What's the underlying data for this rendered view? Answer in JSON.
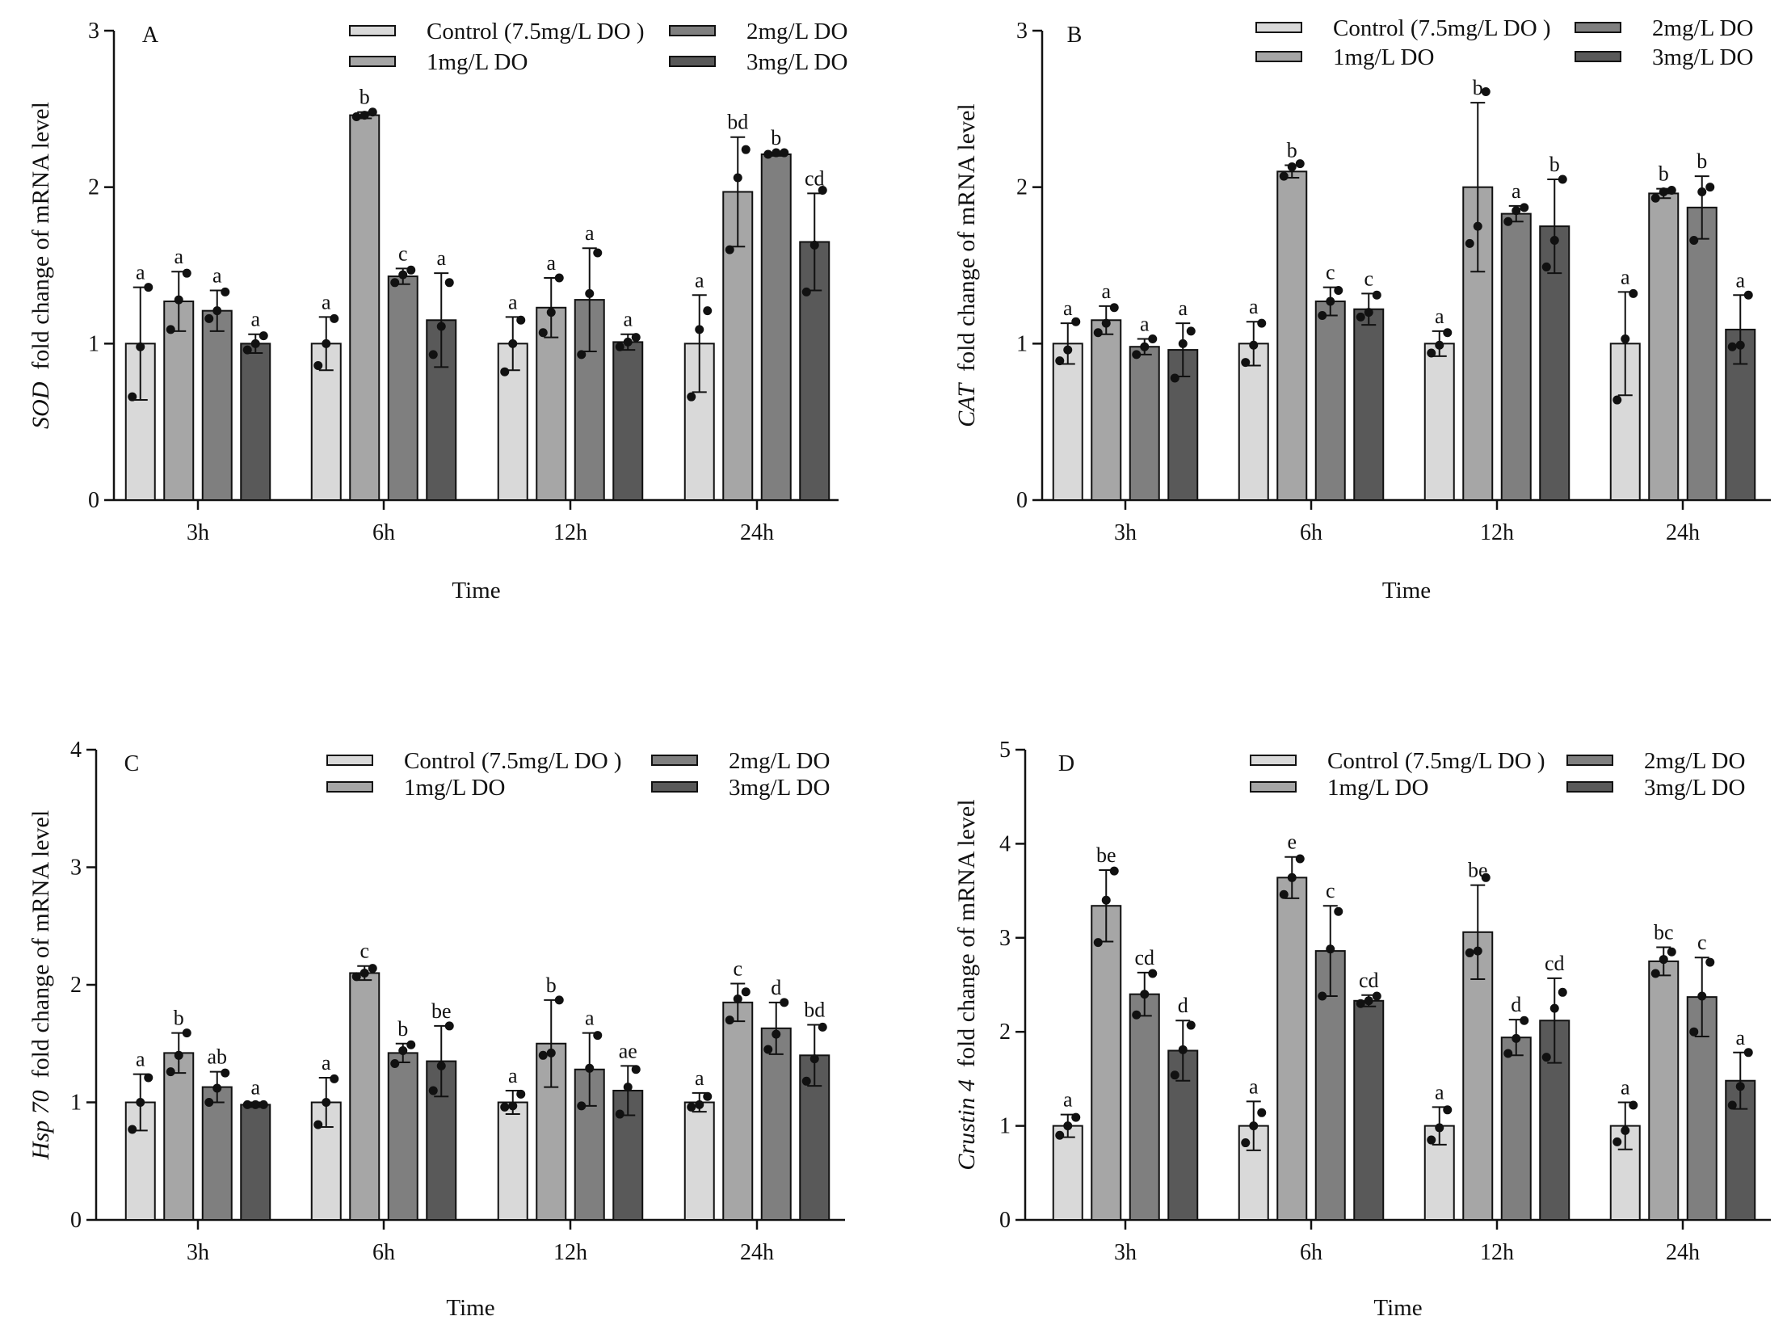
{
  "chart_data": [
    {
      "type": "bar",
      "panel": "A",
      "gene": "SOD",
      "ylabel_suffix": "fold change of mRNA level",
      "xlabel": "Time",
      "categories": [
        "3h",
        "6h",
        "12h",
        "24h"
      ],
      "ylim": [
        0,
        3
      ],
      "yticks": [
        0,
        1,
        2,
        3
      ],
      "series": [
        {
          "name": "Control (7.5mg/L DO )",
          "color": "#d9d9d9",
          "values": [
            1.0,
            1.0,
            1.0,
            1.0
          ],
          "errors": [
            0.36,
            0.17,
            0.17,
            0.31
          ],
          "letters": [
            "a",
            "a",
            "a",
            "a"
          ],
          "points": [
            [
              0.66,
              0.98,
              1.36
            ],
            [
              0.86,
              1.0,
              1.16
            ],
            [
              0.82,
              1.0,
              1.15
            ],
            [
              0.66,
              1.09,
              1.21
            ]
          ]
        },
        {
          "name": "1mg/L DO",
          "color": "#a6a6a6",
          "values": [
            1.27,
            2.46,
            1.23,
            1.97
          ],
          "errors": [
            0.19,
            0.02,
            0.19,
            0.35
          ],
          "letters": [
            "a",
            "b",
            "a",
            "bd"
          ],
          "points": [
            [
              1.09,
              1.28,
              1.45
            ],
            [
              2.45,
              2.46,
              2.48
            ],
            [
              1.07,
              1.2,
              1.42
            ],
            [
              1.6,
              2.06,
              2.24
            ]
          ]
        },
        {
          "name": "2mg/L DO",
          "color": "#7f7f7f",
          "values": [
            1.21,
            1.43,
            1.28,
            2.21
          ],
          "errors": [
            0.13,
            0.05,
            0.33,
            0.01
          ],
          "letters": [
            "a",
            "c",
            "a",
            "b"
          ],
          "points": [
            [
              1.16,
              1.21,
              1.33
            ],
            [
              1.39,
              1.44,
              1.47
            ],
            [
              0.93,
              1.32,
              1.58
            ],
            [
              2.21,
              2.22,
              2.22
            ]
          ]
        },
        {
          "name": "3mg/L DO",
          "color": "#595959",
          "values": [
            1.0,
            1.15,
            1.01,
            1.65
          ],
          "errors": [
            0.06,
            0.3,
            0.05,
            0.31
          ],
          "letters": [
            "a",
            "a",
            "a",
            "cd"
          ],
          "points": [
            [
              0.96,
              1.0,
              1.05
            ],
            [
              0.93,
              1.11,
              1.39
            ],
            [
              0.98,
              1.01,
              1.04
            ],
            [
              1.33,
              1.63,
              1.98
            ]
          ]
        }
      ]
    },
    {
      "type": "bar",
      "panel": "B",
      "gene": "CAT",
      "ylabel_suffix": "fold change of mRNA level",
      "xlabel": "Time",
      "categories": [
        "3h",
        "6h",
        "12h",
        "24h"
      ],
      "ylim": [
        0,
        3
      ],
      "yticks": [
        0,
        1,
        2,
        3
      ],
      "series": [
        {
          "name": "Control (7.5mg/L DO )",
          "color": "#d9d9d9",
          "values": [
            1.0,
            1.0,
            1.0,
            1.0
          ],
          "errors": [
            0.13,
            0.14,
            0.08,
            0.33
          ],
          "letters": [
            "a",
            "a",
            "a",
            "a"
          ],
          "points": [
            [
              0.89,
              0.96,
              1.14
            ],
            [
              0.88,
              0.99,
              1.13
            ],
            [
              0.94,
              0.99,
              1.07
            ],
            [
              0.64,
              1.03,
              1.32
            ]
          ]
        },
        {
          "name": "1mg/L DO",
          "color": "#a6a6a6",
          "values": [
            1.15,
            2.1,
            2.0,
            1.96
          ],
          "errors": [
            0.09,
            0.04,
            0.54,
            0.03
          ],
          "letters": [
            "a",
            "b",
            "b",
            "b"
          ],
          "points": [
            [
              1.07,
              1.13,
              1.23
            ],
            [
              2.07,
              2.13,
              2.15
            ],
            [
              1.64,
              1.75,
              2.61
            ],
            [
              1.93,
              1.97,
              1.98
            ]
          ]
        },
        {
          "name": "2mg/L DO",
          "color": "#7f7f7f",
          "values": [
            0.98,
            1.27,
            1.83,
            1.87
          ],
          "errors": [
            0.05,
            0.09,
            0.05,
            0.2
          ],
          "letters": [
            "a",
            "c",
            "a",
            "b"
          ],
          "points": [
            [
              0.93,
              0.98,
              1.03
            ],
            [
              1.18,
              1.27,
              1.34
            ],
            [
              1.78,
              1.85,
              1.87
            ],
            [
              1.66,
              1.97,
              2.0
            ]
          ]
        },
        {
          "name": "3mg/L DO",
          "color": "#595959",
          "values": [
            0.96,
            1.22,
            1.75,
            1.09
          ],
          "errors": [
            0.17,
            0.1,
            0.3,
            0.22
          ],
          "letters": [
            "a",
            "c",
            "b",
            "a"
          ],
          "points": [
            [
              0.78,
              1.0,
              1.08
            ],
            [
              1.17,
              1.2,
              1.31
            ],
            [
              1.49,
              1.66,
              2.05
            ],
            [
              0.98,
              0.99,
              1.31
            ]
          ]
        }
      ]
    },
    {
      "type": "bar",
      "panel": "C",
      "gene": "Hsp 70",
      "ylabel_suffix": "fold change of mRNA level",
      "xlabel": "Time",
      "categories": [
        "3h",
        "6h",
        "12h",
        "24h"
      ],
      "ylim": [
        0,
        4
      ],
      "yticks": [
        0,
        1,
        2,
        3,
        4
      ],
      "series": [
        {
          "name": "Control (7.5mg/L DO )",
          "color": "#d9d9d9",
          "values": [
            1.0,
            1.0,
            1.0,
            1.0
          ],
          "errors": [
            0.24,
            0.21,
            0.1,
            0.08
          ],
          "letters": [
            "a",
            "a",
            "a",
            "a"
          ],
          "points": [
            [
              0.77,
              1.0,
              1.21
            ],
            [
              0.81,
              1.0,
              1.2
            ],
            [
              0.96,
              0.97,
              1.07
            ],
            [
              0.96,
              0.98,
              1.05
            ]
          ]
        },
        {
          "name": "1mg/L DO",
          "color": "#a6a6a6",
          "values": [
            1.42,
            2.1,
            1.5,
            1.85
          ],
          "errors": [
            0.17,
            0.06,
            0.37,
            0.16
          ],
          "letters": [
            "b",
            "c",
            "b",
            "c"
          ],
          "points": [
            [
              1.26,
              1.4,
              1.59
            ],
            [
              2.07,
              2.1,
              2.14
            ],
            [
              1.4,
              1.42,
              1.87
            ],
            [
              1.7,
              1.88,
              1.94
            ]
          ]
        },
        {
          "name": "2mg/L DO",
          "color": "#7f7f7f",
          "values": [
            1.13,
            1.42,
            1.28,
            1.63
          ],
          "errors": [
            0.13,
            0.08,
            0.31,
            0.22
          ],
          "letters": [
            "ab",
            "b",
            "a",
            "d"
          ],
          "points": [
            [
              1.0,
              1.12,
              1.25
            ],
            [
              1.33,
              1.44,
              1.49
            ],
            [
              0.97,
              1.29,
              1.57
            ],
            [
              1.45,
              1.58,
              1.85
            ]
          ]
        },
        {
          "name": "3mg/L DO",
          "color": "#595959",
          "values": [
            0.98,
            1.35,
            1.1,
            1.4
          ],
          "errors": [
            0.02,
            0.3,
            0.21,
            0.26
          ],
          "letters": [
            "a",
            "be",
            "ae",
            "bd"
          ],
          "points": [
            [
              0.98,
              0.98,
              0.98
            ],
            [
              1.1,
              1.31,
              1.65
            ],
            [
              0.9,
              1.13,
              1.28
            ],
            [
              1.18,
              1.37,
              1.64
            ]
          ]
        }
      ]
    },
    {
      "type": "bar",
      "panel": "D",
      "gene": "Crustin 4",
      "ylabel_suffix": "fold change of mRNA level",
      "xlabel": "Time",
      "categories": [
        "3h",
        "6h",
        "12h",
        "24h"
      ],
      "ylim": [
        0,
        5
      ],
      "yticks": [
        0,
        1,
        2,
        3,
        4,
        5
      ],
      "series": [
        {
          "name": "Control (7.5mg/L DO )",
          "color": "#d9d9d9",
          "values": [
            1.0,
            1.0,
            1.0,
            1.0
          ],
          "errors": [
            0.12,
            0.26,
            0.2,
            0.25
          ],
          "letters": [
            "a",
            "a",
            "a",
            "a"
          ],
          "points": [
            [
              0.9,
              1.0,
              1.09
            ],
            [
              0.82,
              1.0,
              1.14
            ],
            [
              0.85,
              0.98,
              1.17
            ],
            [
              0.83,
              0.95,
              1.22
            ]
          ]
        },
        {
          "name": "1mg/L DO",
          "color": "#a6a6a6",
          "values": [
            3.34,
            3.64,
            3.06,
            2.75
          ],
          "errors": [
            0.38,
            0.22,
            0.5,
            0.15
          ],
          "letters": [
            "be",
            "e",
            "be",
            "bc"
          ],
          "points": [
            [
              2.95,
              3.4,
              3.71
            ],
            [
              3.46,
              3.64,
              3.84
            ],
            [
              2.84,
              2.86,
              3.64
            ],
            [
              2.62,
              2.77,
              2.85
            ]
          ]
        },
        {
          "name": "2mg/L DO",
          "color": "#7f7f7f",
          "values": [
            2.4,
            2.86,
            1.94,
            2.37
          ],
          "errors": [
            0.23,
            0.48,
            0.19,
            0.42
          ],
          "letters": [
            "cd",
            "c",
            "d",
            "c"
          ],
          "points": [
            [
              2.18,
              2.4,
              2.62
            ],
            [
              2.38,
              2.88,
              3.28
            ],
            [
              1.77,
              1.93,
              2.12
            ],
            [
              2.0,
              2.38,
              2.74
            ]
          ]
        },
        {
          "name": "3mg/L DO",
          "color": "#595959",
          "values": [
            1.8,
            2.33,
            2.12,
            1.48
          ],
          "errors": [
            0.32,
            0.06,
            0.45,
            0.3
          ],
          "letters": [
            "d",
            "cd",
            "cd",
            "a"
          ],
          "points": [
            [
              1.54,
              1.81,
              2.07
            ],
            [
              2.3,
              2.33,
              2.38
            ],
            [
              1.73,
              2.25,
              2.42
            ],
            [
              1.22,
              1.42,
              1.78
            ]
          ]
        }
      ]
    }
  ]
}
